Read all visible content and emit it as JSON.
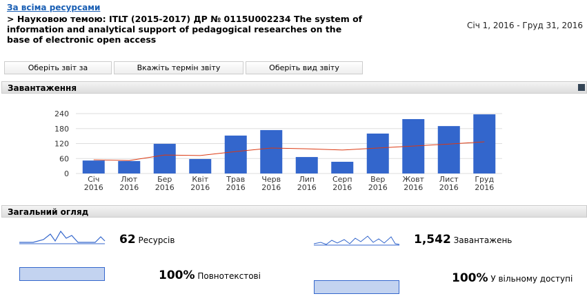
{
  "header": {
    "link": "За всіма ресурсами",
    "title": "> Науковою темою: ITLT (2015-2017) ДР № 0115U002234 The system of information and analytical support of pedagogical researches on the base of electronic open access",
    "date_range": "Січ 1, 2016 - Груд 31, 2016"
  },
  "buttons": [
    "Оберіть звіт за",
    "Вкажіть термін звіту",
    "Оберіть вид звіту"
  ],
  "panels": {
    "downloads": "Завантаження",
    "overview": "Загальний огляд"
  },
  "chart_data": {
    "type": "bar",
    "categories": [
      "Січ 2016",
      "Лют 2016",
      "Бер 2016",
      "Квіт 2016",
      "Трав 2016",
      "Черв 2016",
      "Лип 2016",
      "Серп 2016",
      "Вер 2016",
      "Жовт 2016",
      "Лист 2016",
      "Груд 2016"
    ],
    "series": [
      {
        "type": "bar",
        "color": "#3366cc",
        "values": [
          52,
          50,
          119,
          58,
          152,
          174,
          66,
          47,
          160,
          218,
          190,
          237
        ]
      },
      {
        "type": "line",
        "color": "#dc3912",
        "values": [
          55,
          52,
          74,
          72,
          88,
          102,
          99,
          94,
          102,
          110,
          118,
          127
        ]
      }
    ],
    "ylim": [
      0,
      240
    ],
    "yticks": [
      0,
      60,
      120,
      180,
      240
    ],
    "grid": true
  },
  "overview": [
    {
      "value": "62",
      "label": "Ресурсів"
    },
    {
      "value": "1,542",
      "label": "Завантажень"
    },
    {
      "value": "100%",
      "label": "Повнотекстові"
    },
    {
      "value": "100%",
      "label": "У вільному доступі"
    }
  ]
}
